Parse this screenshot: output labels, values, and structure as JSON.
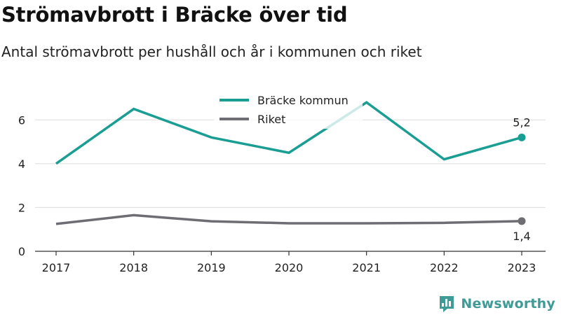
{
  "header": {
    "title": "Strömavbrott i Bräcke över tid",
    "subtitle": "Antal strömavbrott per hushåll och år i kommunen och riket"
  },
  "brand": {
    "name": "Newsworthy"
  },
  "colors": {
    "kommun": "#1a9e93",
    "riket": "#6d6d73",
    "grid": "#dcdcdc",
    "brand": "#3f9b96"
  },
  "chart_data": {
    "type": "line",
    "title": "Strömavbrott i Bräcke över tid",
    "subtitle": "Antal strömavbrott per hushåll och år i kommunen och riket",
    "xlabel": "",
    "ylabel": "",
    "categories": [
      "2017",
      "2018",
      "2019",
      "2020",
      "2021",
      "2022",
      "2023"
    ],
    "ylim": [
      0,
      7
    ],
    "yticks": [
      0,
      2,
      4,
      6
    ],
    "grid": true,
    "legend_position": "top-center",
    "series": [
      {
        "name": "Bräcke kommun",
        "values": [
          4.0,
          6.5,
          5.2,
          4.5,
          6.8,
          4.2,
          5.2
        ],
        "end_label": "5,2"
      },
      {
        "name": "Riket",
        "values": [
          1.25,
          1.65,
          1.37,
          1.28,
          1.28,
          1.3,
          1.38
        ],
        "end_label": "1,4"
      }
    ]
  }
}
